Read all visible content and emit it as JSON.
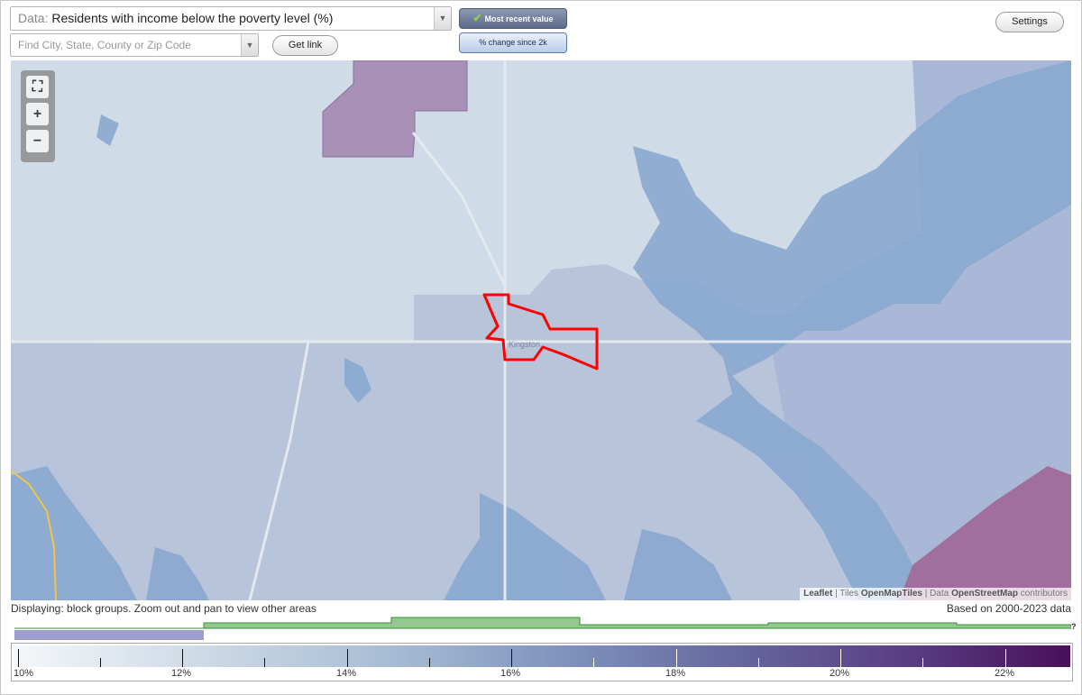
{
  "data_select": {
    "prefix": "Data:",
    "value": "Residents with income below the poverty level (%)"
  },
  "search": {
    "placeholder": "Find City, State, County or Zip Code"
  },
  "buttons": {
    "get_link": "Get link",
    "settings": "Settings"
  },
  "toggles": {
    "most_recent": "Most recent value",
    "pct_change": "% change since 2k"
  },
  "map_labels": {
    "town": "Kingston"
  },
  "attribution": {
    "leaflet": "Leaflet",
    "tiles_prefix": "| Tiles",
    "tiles": "OpenMapTiles",
    "data_prefix": "| Data",
    "data": "OpenStreetMap",
    "suffix": "contributors"
  },
  "status": {
    "left": "Displaying: block groups. Zoom out and pan to view other areas",
    "right": "Based on 2000-2023 data"
  },
  "legend": {
    "labels": [
      "10%",
      "12%",
      "14%",
      "16%",
      "18%",
      "20%",
      "22%"
    ],
    "min": 10,
    "max": 23
  },
  "colors": {
    "highlight": "#ff0000",
    "accent": "#5d6a89",
    "water": "#8aa8cf"
  }
}
